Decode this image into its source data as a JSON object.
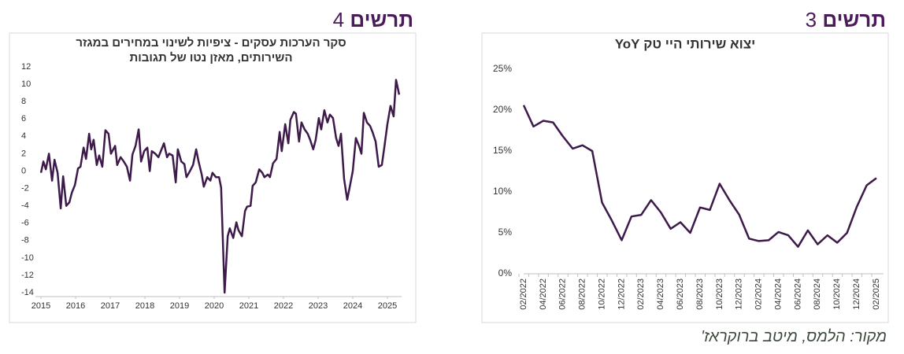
{
  "source": "מקור: הלמס, מיטב ברוקראז'",
  "chart_data": [
    {
      "type": "line",
      "figure_label": "תרשים",
      "figure_number": 4,
      "title": [
        "סקר הערכות עסקים - ציפיות לשינוי במחירים במגזר",
        "השירותים, מאזן נטו של תגובות"
      ],
      "color": "#3d1a4a",
      "x": [
        2015,
        2015.07,
        2015.14,
        2015.23,
        2015.32,
        2015.39,
        2015.48,
        2015.57,
        2015.64,
        2015.73,
        2015.82,
        2015.89,
        2015.98,
        2016.07,
        2016.14,
        2016.23,
        2016.3,
        2016.39,
        2016.45,
        2016.52,
        2016.61,
        2016.68,
        2016.77,
        2016.86,
        2016.95,
        2017.02,
        2017.14,
        2017.2,
        2017.3,
        2017.39,
        2017.48,
        2017.57,
        2017.64,
        2017.73,
        2017.82,
        2017.89,
        2017.98,
        2018.07,
        2018.14,
        2018.2,
        2018.3,
        2018.39,
        2018.48,
        2018.55,
        2018.64,
        2018.7,
        2018.8,
        2018.89,
        2018.95,
        2019.05,
        2019.14,
        2019.2,
        2019.3,
        2019.39,
        2019.48,
        2019.55,
        2019.64,
        2019.7,
        2019.8,
        2019.89,
        2019.95,
        2020.05,
        2020.14,
        2020.2,
        2020.3,
        2020.39,
        2020.45,
        2020.55,
        2020.64,
        2020.7,
        2020.8,
        2020.89,
        2020.95,
        2021.05,
        2021.11,
        2021.2,
        2021.3,
        2021.39,
        2021.45,
        2021.55,
        2021.61,
        2021.7,
        2021.8,
        2021.89,
        2021.95,
        2022.05,
        2022.14,
        2022.2,
        2022.3,
        2022.36,
        2022.45,
        2022.52,
        2022.61,
        2022.7,
        2022.77,
        2022.86,
        2022.93,
        2023.02,
        2023.09,
        2023.18,
        2023.27,
        2023.34,
        2023.43,
        2023.52,
        2023.59,
        2023.66,
        2023.75,
        2023.84,
        2023.91,
        2024.0,
        2024.09,
        2024.18,
        2024.25,
        2024.32,
        2024.41,
        2024.5,
        2024.57,
        2024.66,
        2024.75,
        2024.84,
        2024.91,
        2025.0,
        2025.09,
        2025.18,
        2025.25,
        2025.34
      ],
      "values": [
        -0.2,
        1.1,
        0.2,
        2.0,
        -1.1,
        1.3,
        -0.2,
        -4.3,
        -0.6,
        -4.0,
        -3.6,
        -2.5,
        -1.6,
        0.3,
        0.5,
        2.7,
        1.4,
        4.3,
        2.5,
        3.6,
        0.7,
        1.8,
        0.5,
        4.7,
        4.3,
        2.0,
        2.9,
        0.7,
        1.6,
        1.1,
        0.5,
        -1.1,
        1.9,
        2.9,
        4.8,
        1.1,
        2.3,
        2.7,
        0,
        2.3,
        2.0,
        1.6,
        2.5,
        3.2,
        1.6,
        2.0,
        1.8,
        -1.3,
        2.5,
        1.1,
        0.8,
        -0.7,
        0,
        0.7,
        2.5,
        1.1,
        -0.4,
        -1.8,
        -0.7,
        -1.1,
        -0.2,
        -0.7,
        -0.7,
        -1.9,
        -14,
        -7.5,
        -6.6,
        -7.7,
        -5.9,
        -6.8,
        -7.5,
        -4.6,
        -4.1,
        -4.0,
        -1.7,
        -1.3,
        0.2,
        -0.2,
        -0.7,
        -0.4,
        -0.7,
        0.9,
        1.4,
        4.5,
        2.3,
        5.4,
        3.2,
        5.9,
        6.8,
        6.6,
        3.4,
        5.6,
        4.8,
        4.3,
        3.6,
        2.5,
        3.6,
        6.1,
        4.8,
        7.0,
        5.6,
        6.5,
        6.1,
        3.8,
        2.9,
        4.3,
        -0.9,
        -3.3,
        -1.9,
        0,
        3.8,
        2.9,
        2.0,
        6.7,
        5.6,
        5.2,
        4.5,
        3.4,
        0.5,
        0.7,
        2.7,
        5.4,
        7.5,
        6.3,
        10.5,
        8.8
      ],
      "xlim": [
        2014.84,
        2025.41
      ],
      "xticks": [
        2015,
        2016,
        2017,
        2018,
        2019,
        2020,
        2021,
        2022,
        2023,
        2024,
        2025
      ],
      "ylim": [
        -14,
        12
      ],
      "yticks": [
        -14,
        -12,
        -10,
        -8,
        -6,
        -4,
        -2,
        0,
        2,
        4,
        6,
        8,
        10,
        12
      ]
    },
    {
      "type": "line",
      "figure_label": "תרשים",
      "figure_number": 3,
      "title": [
        "יצוא שירותי היי טק YoY"
      ],
      "color": "#3d1a4a",
      "categories": [
        "02/2022",
        null,
        "04/2022",
        null,
        "06/2022",
        null,
        "08/2022",
        null,
        "10/2022",
        null,
        "12/2022",
        null,
        "02/2023",
        null,
        "04/2023",
        null,
        "06/2023",
        null,
        "08/2023",
        null,
        "10/2023",
        null,
        "12/2023",
        null,
        "02/2024",
        null,
        "04/2024",
        null,
        "06/2024",
        null,
        "08/2024",
        null,
        "10/2024",
        null,
        "12/2024",
        null,
        "02/2025"
      ],
      "values": [
        20.6,
        18,
        18.7,
        18.5,
        16.8,
        15.3,
        15.7,
        15,
        8.7,
        6.5,
        4.1,
        7,
        7.2,
        9,
        7.5,
        5.5,
        6.3,
        5,
        8.1,
        7.8,
        11,
        9,
        7.2,
        4.3,
        4,
        4.1,
        5.1,
        4.7,
        3.3,
        5.3,
        3.6,
        4.7,
        3.8,
        5,
        8.2,
        10.8,
        11.7
      ],
      "ylim": [
        0,
        25
      ],
      "yticks": [
        {
          "value": 0,
          "label": "0%"
        },
        {
          "value": 5,
          "label": "5%"
        },
        {
          "value": 10,
          "label": "10%"
        },
        {
          "value": 15,
          "label": "15%"
        },
        {
          "value": 20,
          "label": "20%"
        },
        {
          "value": 25,
          "label": "25%"
        }
      ]
    }
  ]
}
